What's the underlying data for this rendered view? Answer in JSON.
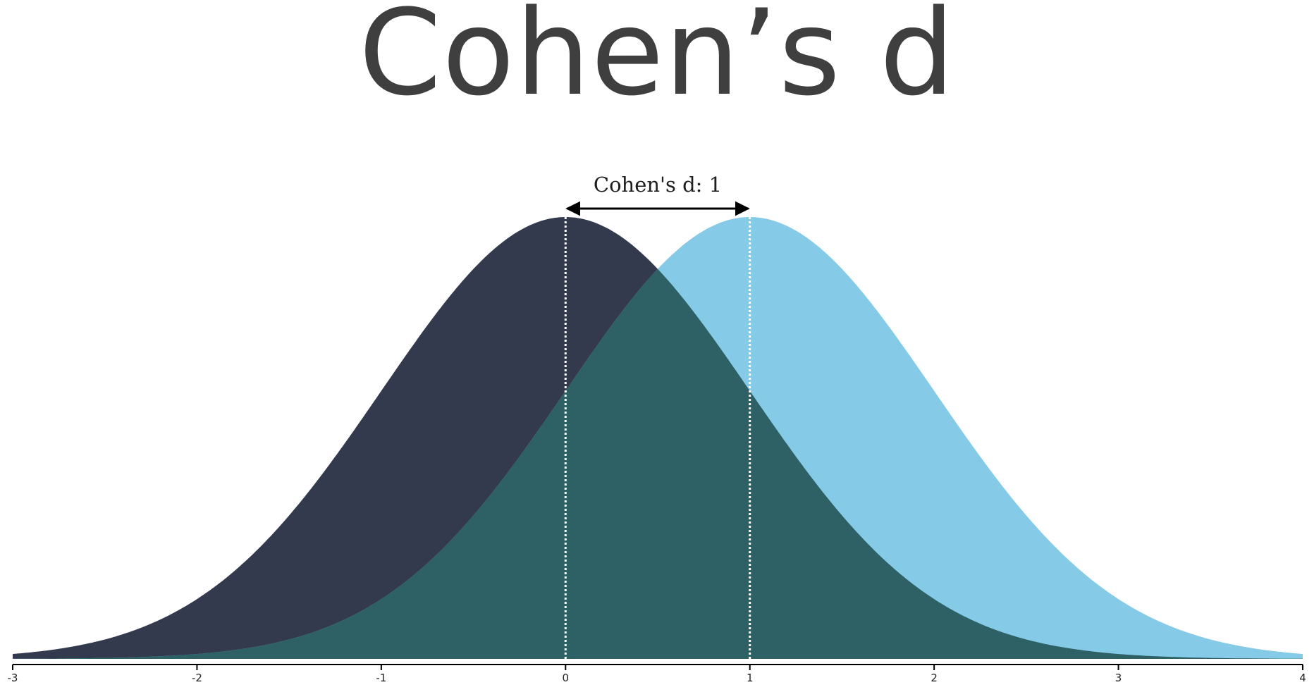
{
  "chart_data": {
    "type": "area",
    "title": "Cohen’s d",
    "x_axis": {
      "range": [
        -3,
        4
      ],
      "ticks": [
        {
          "value": -3,
          "label": "-3"
        },
        {
          "value": -2,
          "label": "-2"
        },
        {
          "value": -1,
          "label": "-1"
        },
        {
          "value": 0,
          "label": "0"
        },
        {
          "value": 1,
          "label": "1"
        },
        {
          "value": 2,
          "label": "2"
        },
        {
          "value": 3,
          "label": "3"
        },
        {
          "value": 4,
          "label": "4"
        }
      ]
    },
    "series": [
      {
        "distribution": "normal",
        "mean": 0,
        "sd": 1,
        "color": "#343a4e"
      },
      {
        "distribution": "normal",
        "mean": 1,
        "sd": 1,
        "color": "#85cae6"
      }
    ],
    "overlap_color": "#2e6166",
    "mean_lines_color": "#ffffff",
    "annotation": {
      "label": "Cohen's d: 1",
      "from": 0,
      "to": 1,
      "value": 1
    }
  }
}
